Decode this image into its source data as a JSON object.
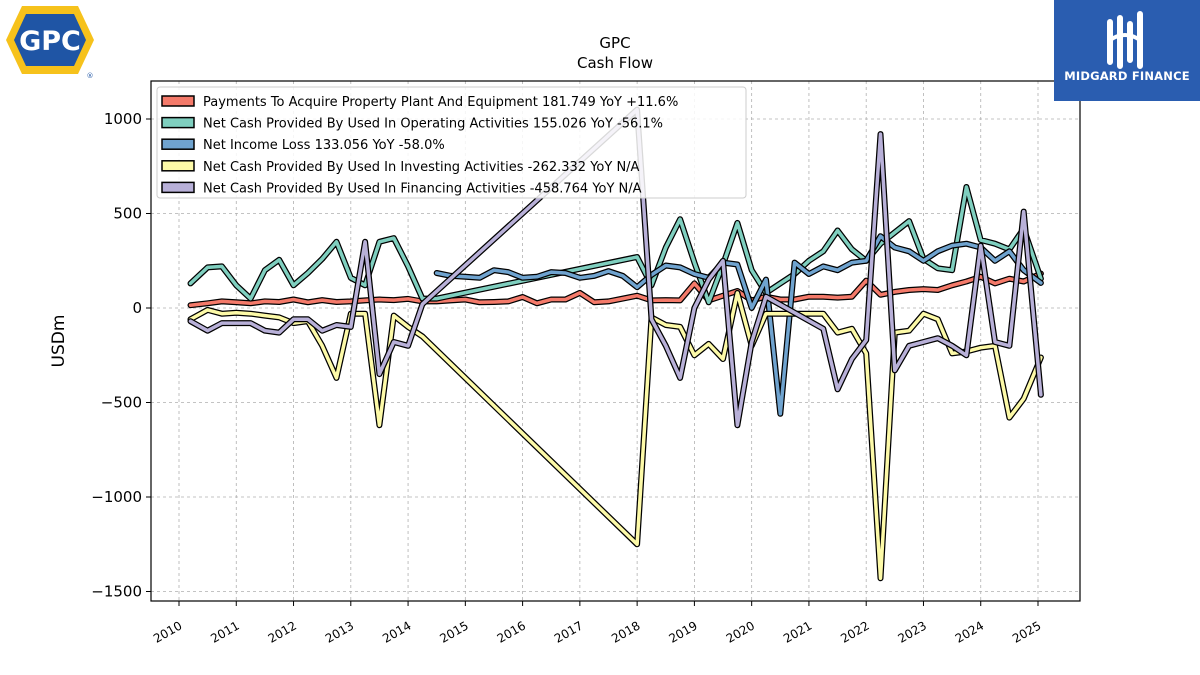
{
  "header": {
    "ticker": "GPC",
    "subtitle": "Cash Flow"
  },
  "logos": {
    "left": {
      "text": "GPC",
      "registered": "®",
      "icon": "gpc-logo-icon"
    },
    "right": {
      "text": "MIDGARD FINANCE",
      "icon": "midgard-finance-logo-icon",
      "background": "#2a5db0"
    }
  },
  "chart_data": {
    "type": "line",
    "title": "GPC",
    "subtitle": "Cash Flow",
    "xlabel": "",
    "ylabel": "USDm",
    "xlim": [
      2009.5,
      2025.75
    ],
    "ylim": [
      -1550,
      1200
    ],
    "yticks": [
      1000,
      500,
      0,
      -500,
      -1000,
      -1500
    ],
    "ytick_labels": [
      "1000",
      "500",
      "0",
      "−500",
      "−1000",
      "−1500"
    ],
    "xticks": [
      2010,
      2011,
      2012,
      2013,
      2014,
      2015,
      2016,
      2017,
      2018,
      2019,
      2020,
      2021,
      2022,
      2023,
      2024,
      2025
    ],
    "xtick_labels": [
      "2010",
      "2011",
      "2012",
      "2013",
      "2014",
      "2015",
      "2016",
      "2017",
      "2018",
      "2019",
      "2020",
      "2021",
      "2022",
      "2023",
      "2024",
      "2025"
    ],
    "grid": true,
    "legend_position": "top-left",
    "series": [
      {
        "name": "Payments To Acquire Property Plant And Equipment",
        "legend_label": "Payments To Acquire Property Plant And Equipment  181.749 YoY +11.6%",
        "color": "#f47a6a",
        "points": [
          [
            2010.2,
            15
          ],
          [
            2010.5,
            25
          ],
          [
            2010.75,
            35
          ],
          [
            2011.0,
            30
          ],
          [
            2011.25,
            25
          ],
          [
            2011.5,
            35
          ],
          [
            2011.75,
            32
          ],
          [
            2012.0,
            45
          ],
          [
            2012.25,
            30
          ],
          [
            2012.5,
            42
          ],
          [
            2012.75,
            32
          ],
          [
            2013.0,
            35
          ],
          [
            2013.25,
            40
          ],
          [
            2013.5,
            45
          ],
          [
            2013.75,
            42
          ],
          [
            2014.0,
            48
          ],
          [
            2014.25,
            35
          ],
          [
            2014.5,
            35
          ],
          [
            2014.75,
            40
          ],
          [
            2015.0,
            45
          ],
          [
            2015.25,
            30
          ],
          [
            2015.5,
            32
          ],
          [
            2015.75,
            35
          ],
          [
            2016.0,
            58
          ],
          [
            2016.25,
            25
          ],
          [
            2016.5,
            45
          ],
          [
            2016.75,
            45
          ],
          [
            2017.0,
            80
          ],
          [
            2017.25,
            30
          ],
          [
            2017.5,
            35
          ],
          [
            2017.75,
            50
          ],
          [
            2018.0,
            65
          ],
          [
            2018.25,
            40
          ],
          [
            2018.5,
            42
          ],
          [
            2018.75,
            40
          ],
          [
            2019.0,
            130
          ],
          [
            2019.25,
            40
          ],
          [
            2019.5,
            65
          ],
          [
            2019.75,
            90
          ],
          [
            2020.0,
            40
          ],
          [
            2020.25,
            60
          ],
          [
            2020.5,
            45
          ],
          [
            2020.75,
            45
          ],
          [
            2021.0,
            60
          ],
          [
            2021.25,
            60
          ],
          [
            2021.5,
            55
          ],
          [
            2021.75,
            60
          ],
          [
            2022.0,
            145
          ],
          [
            2022.25,
            70
          ],
          [
            2022.5,
            85
          ],
          [
            2022.75,
            95
          ],
          [
            2023.0,
            100
          ],
          [
            2023.25,
            95
          ],
          [
            2023.5,
            120
          ],
          [
            2023.75,
            140
          ],
          [
            2024.0,
            165
          ],
          [
            2024.25,
            130
          ],
          [
            2024.5,
            155
          ],
          [
            2024.75,
            140
          ],
          [
            2025.05,
            182
          ]
        ]
      },
      {
        "name": "Net Cash Provided By Used In Operating Activities",
        "legend_label": "Net Cash Provided By Used In Operating Activities  155.026 YoY -56.1%",
        "color": "#7fcfbf",
        "points": [
          [
            2010.2,
            130
          ],
          [
            2010.5,
            215
          ],
          [
            2010.75,
            220
          ],
          [
            2011.0,
            120
          ],
          [
            2011.25,
            50
          ],
          [
            2011.5,
            200
          ],
          [
            2011.75,
            255
          ],
          [
            2012.0,
            120
          ],
          [
            2012.25,
            185
          ],
          [
            2012.5,
            260
          ],
          [
            2012.75,
            350
          ],
          [
            2013.0,
            160
          ],
          [
            2013.25,
            120
          ],
          [
            2013.5,
            350
          ],
          [
            2013.75,
            370
          ],
          [
            2014.0,
            220
          ],
          [
            2014.25,
            50
          ],
          [
            2014.5,
            50
          ],
          [
            2018.0,
            270
          ],
          [
            2018.25,
            120
          ],
          [
            2018.5,
            320
          ],
          [
            2018.75,
            470
          ],
          [
            2019.0,
            240
          ],
          [
            2019.25,
            30
          ],
          [
            2019.5,
            230
          ],
          [
            2019.75,
            450
          ],
          [
            2020.0,
            200
          ],
          [
            2020.25,
            80
          ],
          [
            2020.5,
            130
          ],
          [
            2020.75,
            180
          ],
          [
            2021.0,
            250
          ],
          [
            2021.25,
            300
          ],
          [
            2021.5,
            410
          ],
          [
            2021.75,
            310
          ],
          [
            2022.0,
            250
          ],
          [
            2022.25,
            340
          ],
          [
            2022.5,
            400
          ],
          [
            2022.75,
            460
          ],
          [
            2023.0,
            260
          ],
          [
            2023.25,
            210
          ],
          [
            2023.5,
            200
          ],
          [
            2023.75,
            640
          ],
          [
            2024.0,
            360
          ],
          [
            2024.25,
            340
          ],
          [
            2024.5,
            310
          ],
          [
            2024.75,
            420
          ],
          [
            2025.05,
            155
          ]
        ]
      },
      {
        "name": "Net Income Loss",
        "legend_label": "Net Income Loss  133.056 YoY -58.0%",
        "color": "#6fa3cf",
        "points": [
          [
            2014.5,
            185
          ],
          [
            2014.75,
            170
          ],
          [
            2015.0,
            165
          ],
          [
            2015.25,
            160
          ],
          [
            2015.5,
            200
          ],
          [
            2015.75,
            190
          ],
          [
            2016.0,
            160
          ],
          [
            2016.25,
            165
          ],
          [
            2016.5,
            190
          ],
          [
            2016.75,
            185
          ],
          [
            2017.0,
            160
          ],
          [
            2017.25,
            170
          ],
          [
            2017.5,
            195
          ],
          [
            2017.75,
            170
          ],
          [
            2018.0,
            110
          ],
          [
            2018.25,
            175
          ],
          [
            2018.5,
            225
          ],
          [
            2018.75,
            215
          ],
          [
            2019.0,
            180
          ],
          [
            2019.25,
            160
          ],
          [
            2019.5,
            240
          ],
          [
            2019.75,
            230
          ],
          [
            2020.0,
            0
          ],
          [
            2020.25,
            150
          ],
          [
            2020.5,
            -560
          ],
          [
            2020.75,
            240
          ],
          [
            2021.0,
            180
          ],
          [
            2021.25,
            220
          ],
          [
            2021.5,
            200
          ],
          [
            2021.75,
            240
          ],
          [
            2022.0,
            250
          ],
          [
            2022.25,
            380
          ],
          [
            2022.5,
            320
          ],
          [
            2022.75,
            300
          ],
          [
            2023.0,
            250
          ],
          [
            2023.25,
            300
          ],
          [
            2023.5,
            330
          ],
          [
            2023.75,
            340
          ],
          [
            2024.0,
            320
          ],
          [
            2024.25,
            250
          ],
          [
            2024.5,
            300
          ],
          [
            2024.75,
            200
          ],
          [
            2025.05,
            133
          ]
        ]
      },
      {
        "name": "Net Cash Provided By Used In Investing Activities",
        "legend_label": "Net Cash Provided By Used In Investing Activities  -262.332 YoY N/A",
        "color": "#fdfaa8",
        "points": [
          [
            2010.2,
            -60
          ],
          [
            2010.5,
            -10
          ],
          [
            2010.75,
            -30
          ],
          [
            2011.0,
            -25
          ],
          [
            2011.25,
            -30
          ],
          [
            2011.5,
            -40
          ],
          [
            2011.75,
            -50
          ],
          [
            2012.0,
            -80
          ],
          [
            2012.25,
            -70
          ],
          [
            2012.5,
            -200
          ],
          [
            2012.75,
            -370
          ],
          [
            2013.0,
            -30
          ],
          [
            2013.25,
            -30
          ],
          [
            2013.5,
            -620
          ],
          [
            2013.75,
            -40
          ],
          [
            2014.0,
            -100
          ],
          [
            2014.25,
            -150
          ],
          [
            2018.0,
            -1250
          ],
          [
            2018.25,
            -50
          ],
          [
            2018.5,
            -90
          ],
          [
            2018.75,
            -100
          ],
          [
            2019.0,
            -250
          ],
          [
            2019.25,
            -190
          ],
          [
            2019.5,
            -270
          ],
          [
            2019.75,
            80
          ],
          [
            2020.0,
            -200
          ],
          [
            2020.25,
            -30
          ],
          [
            2020.5,
            -30
          ],
          [
            2020.75,
            -30
          ],
          [
            2021.0,
            -30
          ],
          [
            2021.25,
            -30
          ],
          [
            2021.5,
            -130
          ],
          [
            2021.75,
            -110
          ],
          [
            2022.0,
            -240
          ],
          [
            2022.25,
            -1430
          ],
          [
            2022.5,
            -130
          ],
          [
            2022.75,
            -120
          ],
          [
            2023.0,
            -30
          ],
          [
            2023.25,
            -60
          ],
          [
            2023.5,
            -240
          ],
          [
            2023.75,
            -230
          ],
          [
            2024.0,
            -210
          ],
          [
            2024.25,
            -200
          ],
          [
            2024.5,
            -580
          ],
          [
            2024.75,
            -480
          ],
          [
            2025.05,
            -262
          ]
        ]
      },
      {
        "name": "Net Cash Provided By Used In Financing Activities",
        "legend_label": "Net Cash Provided By Used In Financing Activities  -458.764 YoY N/A",
        "color": "#b8b0d8",
        "points": [
          [
            2010.2,
            -70
          ],
          [
            2010.5,
            -120
          ],
          [
            2010.75,
            -80
          ],
          [
            2011.0,
            -80
          ],
          [
            2011.25,
            -80
          ],
          [
            2011.5,
            -120
          ],
          [
            2011.75,
            -130
          ],
          [
            2012.0,
            -60
          ],
          [
            2012.25,
            -60
          ],
          [
            2012.5,
            -120
          ],
          [
            2012.75,
            -90
          ],
          [
            2013.0,
            -100
          ],
          [
            2013.25,
            350
          ],
          [
            2013.5,
            -350
          ],
          [
            2013.75,
            -180
          ],
          [
            2014.0,
            -200
          ],
          [
            2014.25,
            20
          ],
          [
            2018.0,
            1050
          ],
          [
            2018.25,
            -60
          ],
          [
            2018.5,
            -200
          ],
          [
            2018.75,
            -370
          ],
          [
            2019.0,
            0
          ],
          [
            2019.25,
            150
          ],
          [
            2019.5,
            250
          ],
          [
            2019.75,
            -620
          ],
          [
            2020.0,
            -180
          ],
          [
            2020.25,
            60
          ],
          [
            2021.25,
            -110
          ],
          [
            2021.5,
            -430
          ],
          [
            2021.75,
            -270
          ],
          [
            2022.0,
            -170
          ],
          [
            2022.25,
            920
          ],
          [
            2022.5,
            -330
          ],
          [
            2022.75,
            -200
          ],
          [
            2023.0,
            -180
          ],
          [
            2023.25,
            -160
          ],
          [
            2023.5,
            -200
          ],
          [
            2023.75,
            -250
          ],
          [
            2024.0,
            330
          ],
          [
            2024.25,
            -180
          ],
          [
            2024.5,
            -200
          ],
          [
            2024.75,
            510
          ],
          [
            2025.05,
            -459
          ]
        ]
      }
    ]
  }
}
